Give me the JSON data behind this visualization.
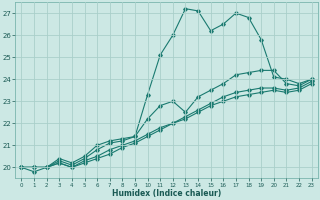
{
  "xlabel": "Humidex (Indice chaleur)",
  "ylabel": "",
  "background_color": "#cce8e4",
  "grid_color": "#aacfca",
  "line_color": "#1a7a70",
  "xlim": [
    -0.5,
    23.5
  ],
  "ylim": [
    19.5,
    27.5
  ],
  "yticks": [
    20,
    21,
    22,
    23,
    24,
    25,
    26,
    27
  ],
  "xticks": [
    0,
    1,
    2,
    3,
    4,
    5,
    6,
    7,
    8,
    9,
    10,
    11,
    12,
    13,
    14,
    15,
    16,
    17,
    18,
    19,
    20,
    21,
    22,
    23
  ],
  "series": [
    {
      "x": [
        0,
        1,
        2,
        3,
        4,
        5,
        6,
        7,
        8,
        9,
        10,
        11,
        12,
        13,
        14,
        15,
        16,
        17,
        18,
        19,
        20,
        21,
        22,
        23
      ],
      "y": [
        20.0,
        19.8,
        20.0,
        20.4,
        20.2,
        20.5,
        21.0,
        21.2,
        21.3,
        21.4,
        23.3,
        25.1,
        26.0,
        27.2,
        27.1,
        26.2,
        26.5,
        27.0,
        26.8,
        25.8,
        24.1,
        24.0,
        23.8,
        24.0
      ]
    },
    {
      "x": [
        0,
        1,
        2,
        3,
        4,
        5,
        6,
        7,
        8,
        9,
        10,
        11,
        12,
        13,
        14,
        15,
        16,
        17,
        18,
        19,
        20,
        21,
        22,
        23
      ],
      "y": [
        20.0,
        20.0,
        20.0,
        20.3,
        20.1,
        20.4,
        20.8,
        21.1,
        21.2,
        21.4,
        22.2,
        22.8,
        23.0,
        22.5,
        23.2,
        23.5,
        23.8,
        24.2,
        24.3,
        24.4,
        24.4,
        23.8,
        23.7,
        24.0
      ]
    },
    {
      "x": [
        0,
        1,
        2,
        3,
        4,
        5,
        6,
        7,
        8,
        9,
        10,
        11,
        12,
        13,
        14,
        15,
        16,
        17,
        18,
        19,
        20,
        21,
        22,
        23
      ],
      "y": [
        20.0,
        20.0,
        20.0,
        20.2,
        20.0,
        20.3,
        20.5,
        20.8,
        21.0,
        21.2,
        21.5,
        21.8,
        22.0,
        22.3,
        22.6,
        22.9,
        23.2,
        23.4,
        23.5,
        23.6,
        23.6,
        23.5,
        23.6,
        23.9
      ]
    },
    {
      "x": [
        0,
        1,
        2,
        3,
        4,
        5,
        6,
        7,
        8,
        9,
        10,
        11,
        12,
        13,
        14,
        15,
        16,
        17,
        18,
        19,
        20,
        21,
        22,
        23
      ],
      "y": [
        20.0,
        20.0,
        20.0,
        20.2,
        20.0,
        20.2,
        20.4,
        20.6,
        20.9,
        21.1,
        21.4,
        21.7,
        22.0,
        22.2,
        22.5,
        22.8,
        23.0,
        23.2,
        23.3,
        23.4,
        23.5,
        23.4,
        23.5,
        23.8
      ]
    }
  ]
}
